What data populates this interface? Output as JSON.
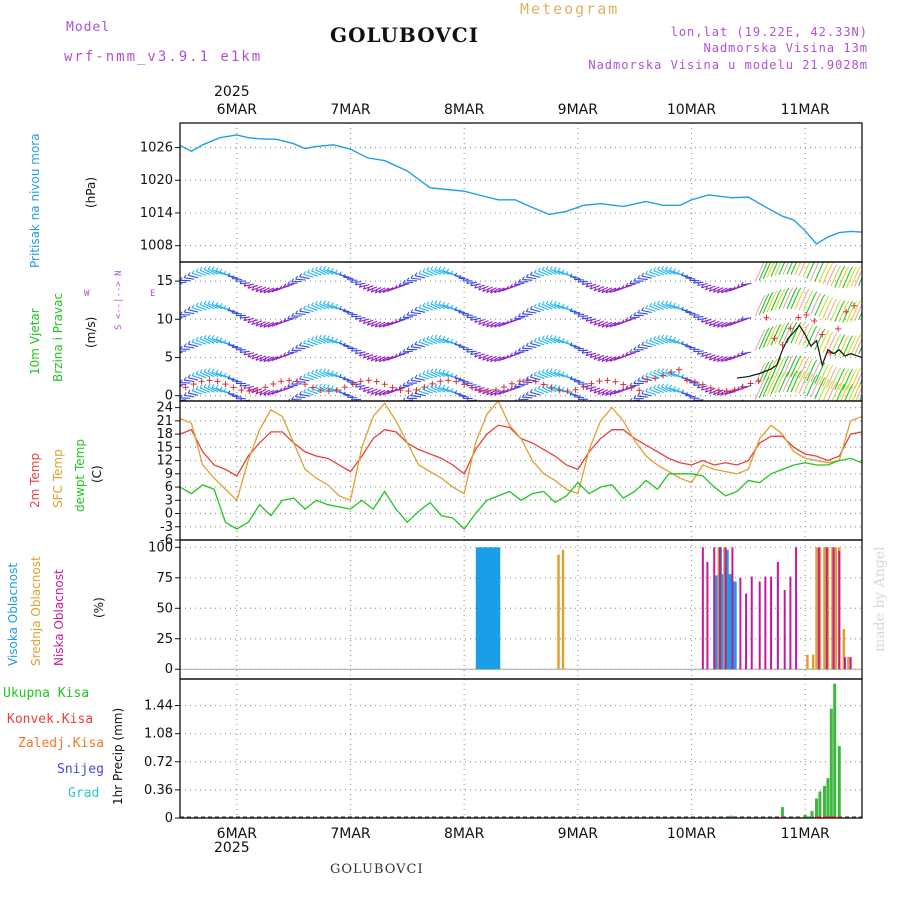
{
  "header": {
    "model_label": "Model",
    "model_name": "wrf-nmm_v3.9.1 e1km",
    "station": "GOLUBOVCI",
    "product": "Meteogram",
    "coords": "lon,lat (19.22E, 42.33N)",
    "elevation": "Nadmorska Visina 13m",
    "model_elevation": "Nadmorska Visina u modelu 21.9028m",
    "credit": "made by Angel",
    "footer_station": "GOLUBOVCI"
  },
  "time_axis": {
    "year": "2025",
    "labels": [
      "6MAR",
      "7MAR",
      "8MAR",
      "9MAR",
      "10MAR",
      "11MAR"
    ]
  },
  "colors": {
    "pressure": "#1f9ee8",
    "temp2m": "#e8413c",
    "sfc_temp": "#e0a030",
    "dewpoint": "#22c422",
    "high_cloud": "#1a9ee8",
    "mid_cloud": "#e0a030",
    "low_cloud": "#c8189c",
    "total_precip": "#3cb83c",
    "conv_precip": "#e8413c",
    "frozen_precip": "#f07828",
    "snow": "#4848e0",
    "hail": "#30c8c8",
    "wind_speed_line": "#111111",
    "wind_barb": "#3448e8",
    "gust_marker": "#e03030"
  },
  "panel_labels": {
    "pressure": {
      "name": "Pritisak na nivou mora",
      "unit": "(hPa)"
    },
    "wind": {
      "name1": "10m Vjetar",
      "name2": "Brzina i Pravac",
      "unit": "(m/s)",
      "compass_ns": "S <--|--> N",
      "compass_w": "W",
      "compass_e": "E"
    },
    "temp": {
      "t2m": "2m Temp",
      "sfc": "SFC Temp",
      "dew": "dewpt Temp",
      "unit": "(C)"
    },
    "cloud": {
      "high": "Visoka Oblacnost",
      "mid": "Srednja Oblacnost",
      "low": "Niska Oblacnost",
      "unit": "(%)"
    },
    "precip": {
      "total": "Ukupna Kisa",
      "conv": "Konvek.Kisa",
      "frozen": "Zaledj.Kisa",
      "snow": "Snijeg",
      "hail": "Grad",
      "unit": "1hr Precip (mm)"
    }
  },
  "chart_data": [
    {
      "type": "line",
      "ylabel": "Pritisak na nivou mora (hPa)",
      "yticks": [
        "1008",
        "1014",
        "1020",
        "1026"
      ],
      "ylim": [
        1005.0,
        1030.5
      ],
      "x_days": [
        5.5,
        5.6,
        5.7,
        5.85,
        6.0,
        6.1,
        6.2,
        6.35,
        6.5,
        6.6,
        6.7,
        6.85,
        7.0,
        7.15,
        7.3,
        7.5,
        7.7,
        7.85,
        8.0,
        8.15,
        8.3,
        8.45,
        8.6,
        8.75,
        8.9,
        9.05,
        9.2,
        9.4,
        9.6,
        9.75,
        9.9,
        10.0,
        10.15,
        10.35,
        10.5,
        10.65,
        10.8,
        10.9,
        11.0,
        11.1,
        11.2,
        11.3,
        11.4,
        11.5
      ],
      "series": [
        {
          "values": [
            1026.4,
            1025.3,
            1026.5,
            1027.8,
            1028.3,
            1027.8,
            1027.6,
            1027.5,
            1026.7,
            1025.8,
            1026.2,
            1026.5,
            1025.7,
            1024.1,
            1023.6,
            1021.7,
            1018.6,
            1018.3,
            1018.0,
            1017.2,
            1016.4,
            1016.4,
            1015.0,
            1013.7,
            1014.3,
            1015.4,
            1015.7,
            1015.2,
            1016.1,
            1015.4,
            1015.4,
            1016.4,
            1017.3,
            1016.8,
            1016.9,
            1015.1,
            1013.4,
            1012.7,
            1010.7,
            1008.3,
            1009.6,
            1010.4,
            1010.6,
            1010.5
          ]
        }
      ],
      "grid": true
    },
    {
      "type": "line",
      "ylabel": "10m Vjetar Brzina i Pravac (m/s)",
      "yticks": [
        "0",
        "5",
        "10",
        "15"
      ],
      "ylim": [
        -0.7,
        17.5
      ],
      "x_days": [
        10.4,
        10.5,
        10.6,
        10.7,
        10.75,
        10.8,
        10.85,
        10.9,
        10.95,
        11.0,
        11.05,
        11.1,
        11.15,
        11.2,
        11.25,
        11.3,
        11.35,
        11.4,
        11.5
      ],
      "series": [
        {
          "values": [
            2.3,
            2.5,
            2.9,
            3.5,
            4.0,
            6.0,
            7.5,
            8.3,
            9.2,
            8.0,
            6.5,
            7.2,
            4.0,
            6.0,
            5.5,
            6.0,
            5.2,
            5.5,
            5.0
          ]
        }
      ],
      "grid": true
    },
    {
      "type": "line",
      "ylabel": "Temp (C)",
      "yticks": [
        "-6",
        "-3",
        "0",
        "3",
        "6",
        "9",
        "12",
        "15",
        "18",
        "21",
        "24"
      ],
      "ylim": [
        -6,
        25.5
      ],
      "x_days": [
        5.5,
        5.6,
        5.7,
        5.8,
        5.9,
        6.0,
        6.1,
        6.2,
        6.3,
        6.4,
        6.5,
        6.6,
        6.7,
        6.8,
        6.9,
        7.0,
        7.1,
        7.2,
        7.3,
        7.4,
        7.5,
        7.6,
        7.7,
        7.8,
        7.9,
        8.0,
        8.1,
        8.2,
        8.3,
        8.4,
        8.5,
        8.6,
        8.7,
        8.8,
        8.9,
        9.0,
        9.1,
        9.2,
        9.3,
        9.4,
        9.5,
        9.6,
        9.7,
        9.8,
        9.9,
        10.0,
        10.1,
        10.2,
        10.3,
        10.4,
        10.5,
        10.6,
        10.7,
        10.8,
        10.9,
        11.0,
        11.1,
        11.2,
        11.3,
        11.4,
        11.5
      ],
      "series": [
        {
          "name": "2m Temp",
          "values": [
            18.0,
            19.0,
            14.0,
            11.0,
            10.0,
            8.5,
            13.0,
            16.0,
            18.5,
            18.5,
            16.0,
            14.0,
            13.0,
            12.5,
            11.0,
            9.5,
            13.0,
            17.0,
            19.0,
            18.5,
            16.0,
            14.5,
            13.5,
            12.5,
            11.0,
            9.0,
            14.5,
            18.0,
            20.0,
            19.5,
            17.0,
            16.0,
            14.5,
            13.0,
            11.0,
            10.0,
            14.0,
            17.0,
            19.0,
            19.0,
            17.0,
            15.5,
            14.0,
            12.5,
            11.5,
            11.0,
            12.0,
            11.0,
            11.5,
            11.0,
            12.0,
            16.0,
            17.5,
            17.5,
            15.0,
            13.5,
            13.0,
            12.0,
            13.0,
            18.0,
            18.5
          ]
        },
        {
          "name": "SFC Temp",
          "values": [
            21.5,
            20.5,
            11.0,
            8.0,
            5.5,
            3.0,
            12.0,
            19.0,
            23.5,
            22.0,
            16.0,
            10.0,
            8.0,
            6.5,
            4.0,
            3.0,
            15.0,
            22.0,
            25.0,
            21.0,
            16.0,
            11.0,
            9.5,
            8.0,
            6.0,
            4.5,
            16.0,
            22.5,
            25.5,
            20.0,
            17.0,
            12.0,
            9.0,
            7.5,
            5.5,
            4.5,
            14.5,
            21.0,
            24.0,
            21.0,
            16.5,
            13.0,
            11.0,
            9.5,
            8.0,
            7.0,
            11.0,
            10.0,
            9.5,
            9.0,
            10.0,
            17.0,
            20.0,
            18.0,
            14.0,
            12.5,
            12.0,
            11.5,
            12.0,
            21.0,
            22.0
          ]
        },
        {
          "name": "dewpt Temp",
          "values": [
            6.0,
            4.5,
            6.5,
            5.5,
            -2.0,
            -3.5,
            -2.0,
            2.0,
            -0.5,
            3.0,
            3.5,
            1.0,
            3.0,
            2.0,
            1.5,
            1.0,
            3.0,
            1.0,
            5.0,
            1.0,
            -2.0,
            0.5,
            2.5,
            -0.5,
            -1.0,
            -3.5,
            0.0,
            3.0,
            4.0,
            5.0,
            3.0,
            4.5,
            5.0,
            2.5,
            4.0,
            7.0,
            4.5,
            6.0,
            6.5,
            3.5,
            5.0,
            7.5,
            5.5,
            9.0,
            9.0,
            9.0,
            8.5,
            6.0,
            4.0,
            5.0,
            7.5,
            7.0,
            9.0,
            10.0,
            11.0,
            11.5,
            11.0,
            11.0,
            12.0,
            12.5,
            11.5
          ]
        }
      ],
      "grid": true
    },
    {
      "type": "bar",
      "ylabel": "Oblacnost (%)",
      "yticks": [
        "0",
        "25",
        "50",
        "75",
        "100"
      ],
      "ylim": [
        -8,
        106
      ],
      "series": [
        {
          "name": "Visoka Oblacnost",
          "x_days": [
            8.12,
            8.15,
            8.18,
            8.21,
            8.24,
            8.27,
            8.3,
            10.22,
            10.25,
            10.28,
            10.31,
            10.34,
            10.38
          ],
          "values": [
            100,
            100,
            100,
            100,
            100,
            100,
            100,
            77,
            100,
            78,
            98,
            78,
            72
          ]
        },
        {
          "name": "Srednja Oblacnost",
          "x_days": [
            8.83,
            8.87,
            10.24,
            10.29,
            11.02,
            11.07,
            11.1,
            11.13,
            11.17,
            11.2,
            11.24,
            11.27,
            11.3,
            11.34,
            11.38
          ],
          "values": [
            94,
            98,
            100,
            100,
            12,
            12,
            100,
            100,
            100,
            100,
            100,
            100,
            100,
            33,
            10
          ]
        },
        {
          "name": "Niska Oblacnost",
          "x_days": [
            10.1,
            10.14,
            10.2,
            10.25,
            10.3,
            10.36,
            10.43,
            10.48,
            10.53,
            10.6,
            10.65,
            10.7,
            10.76,
            10.82,
            10.87,
            10.92,
            11.12,
            11.19,
            11.25,
            11.3,
            11.35,
            11.4
          ],
          "values": [
            100,
            88,
            100,
            100,
            100,
            100,
            75,
            62,
            76,
            72,
            76,
            76,
            88,
            65,
            76,
            100,
            100,
            100,
            100,
            97,
            10,
            10
          ]
        }
      ],
      "grid": true
    },
    {
      "type": "bar",
      "ylabel": "1hr Precip (mm)",
      "yticks": [
        "0",
        "0.36",
        "0.72",
        "1.08",
        "1.44"
      ],
      "ylim": [
        0,
        1.78
      ],
      "series": [
        {
          "name": "Ukupna Kisa",
          "x_days": [
            10.35,
            10.8,
            10.95,
            11.0,
            11.03,
            11.06,
            11.1,
            11.13,
            11.17,
            11.2,
            11.23,
            11.26,
            11.3
          ],
          "values": [
            0.03,
            0.14,
            0.01,
            0.04,
            0.02,
            0.09,
            0.25,
            0.34,
            0.41,
            0.51,
            1.4,
            1.72,
            0.92
          ]
        }
      ],
      "grid": true
    }
  ]
}
